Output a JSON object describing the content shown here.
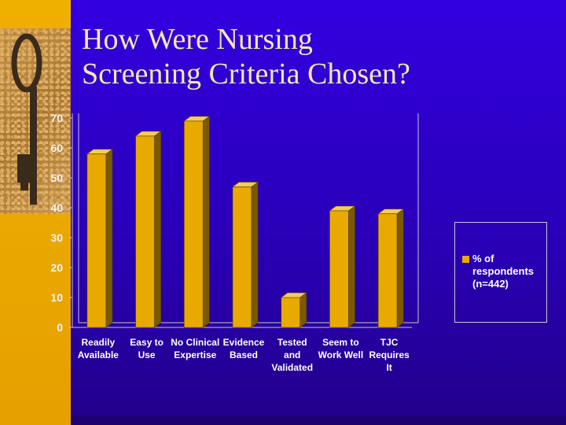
{
  "slide": {
    "title_lines": [
      "How Were Nursing",
      "Screening Criteria Chosen?"
    ]
  },
  "colors": {
    "bar_front": "#e8aa00",
    "bar_side": "#7a5a00",
    "bar_top": "#f4cc55",
    "axis": "#c8c8c8",
    "background_panel": "#3000d0",
    "accent_strip": "#e8a400"
  },
  "icons": [
    "old-key-photo"
  ],
  "chart_data": {
    "type": "bar",
    "title": "",
    "xlabel": "",
    "ylabel": "",
    "ylim": [
      0,
      70
    ],
    "yticks": [
      0,
      10,
      20,
      30,
      40,
      50,
      60,
      70
    ],
    "categories": [
      [
        "Readily",
        "Available"
      ],
      [
        "Easy to",
        "Use"
      ],
      [
        "No Clinical",
        "Expertise"
      ],
      [
        "Evidence",
        "Based"
      ],
      [
        "Tested",
        "and",
        "Validated"
      ],
      [
        "Seem to",
        "Work Well"
      ],
      [
        "TJC",
        "Requires",
        "It"
      ]
    ],
    "series": [
      {
        "name": "% of respondents (n=442)",
        "values": [
          58,
          64,
          69,
          47,
          10,
          39,
          38
        ]
      }
    ],
    "grid": false,
    "legend": "right",
    "style": "3d"
  }
}
